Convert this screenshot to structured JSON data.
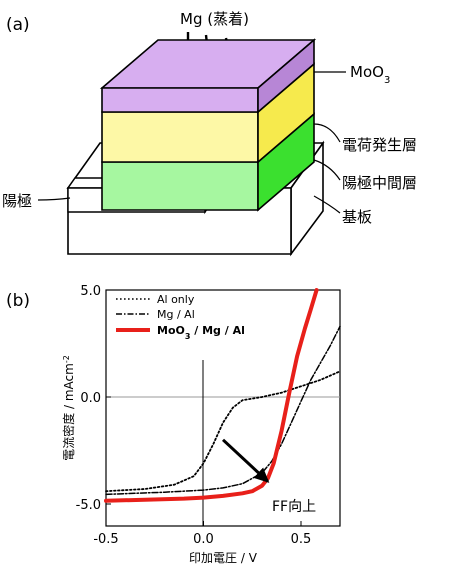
{
  "panel_a": {
    "panel_label": "(a)",
    "deposition_label": "Mg (蒸着)",
    "layers": [
      {
        "name": "MoO3",
        "label": "MoO",
        "sub": "3",
        "color": "#d7aef0",
        "side_color": "#b786d6"
      },
      {
        "name": "charge-generation",
        "label": "電荷発生層",
        "color": "#fdf8a6",
        "side_color": "#f6ea4d"
      },
      {
        "name": "anode-intermediate",
        "label": "陽極中間層",
        "color": "#a6f7a0",
        "side_color": "#3be02f"
      }
    ],
    "anode_label": "陽極",
    "substrate_label": "基板"
  },
  "panel_b": {
    "panel_label": "(b)",
    "annotation": "FF向上"
  },
  "chart_data": {
    "type": "line",
    "xlabel": "印加電圧 / V",
    "ylabel": "電流密度 / mAcm",
    "ylabel_sup": "-2",
    "xlim": [
      -0.5,
      0.7
    ],
    "ylim": [
      -5.5,
      5.0
    ],
    "x_ticks": [
      -0.5,
      0.0,
      0.5
    ],
    "x_tick_labels": [
      "-0.5",
      "0.0",
      "0.5"
    ],
    "y_ticks": [
      -5.0,
      0.0,
      5.0
    ],
    "y_tick_labels": [
      "-5.0",
      "0.0",
      "5.0"
    ],
    "legend_position": "top-left",
    "series": [
      {
        "name": "Al only",
        "style": "dotted",
        "color": "#000000",
        "x": [
          -0.5,
          -0.3,
          -0.15,
          -0.05,
          0.0,
          0.05,
          0.1,
          0.15,
          0.2,
          0.3,
          0.4,
          0.5,
          0.6,
          0.7
        ],
        "y": [
          -4.4,
          -4.3,
          -4.1,
          -3.7,
          -3.1,
          -2.2,
          -1.2,
          -0.5,
          -0.15,
          0.0,
          0.2,
          0.5,
          0.8,
          1.2
        ]
      },
      {
        "name": "Mg / Al",
        "style": "dashdot",
        "color": "#000000",
        "x": [
          -0.5,
          -0.2,
          0.0,
          0.1,
          0.2,
          0.3,
          0.35,
          0.4,
          0.45,
          0.5,
          0.55,
          0.6,
          0.65,
          0.7
        ],
        "y": [
          -4.55,
          -4.45,
          -4.35,
          -4.25,
          -4.05,
          -3.55,
          -3.0,
          -2.2,
          -1.2,
          -0.2,
          0.8,
          1.6,
          2.4,
          3.3
        ]
      },
      {
        "name": "MoO3 / Mg / Al",
        "name_main": "MoO",
        "name_sub": "3",
        "name_rest": " / Mg / Al",
        "style": "solid-bold",
        "color": "#e8201a",
        "x": [
          -0.5,
          -0.3,
          -0.1,
          0.0,
          0.1,
          0.2,
          0.25,
          0.3,
          0.33,
          0.36,
          0.4,
          0.44,
          0.48,
          0.52,
          0.55,
          0.58
        ],
        "y": [
          -4.85,
          -4.8,
          -4.75,
          -4.7,
          -4.62,
          -4.5,
          -4.4,
          -4.15,
          -3.8,
          -3.1,
          -1.6,
          0.2,
          1.9,
          3.2,
          4.1,
          5.0
        ]
      }
    ],
    "annotation_arrow": {
      "from": [
        0.1,
        -2.0
      ],
      "to": [
        0.33,
        -3.95
      ]
    }
  }
}
